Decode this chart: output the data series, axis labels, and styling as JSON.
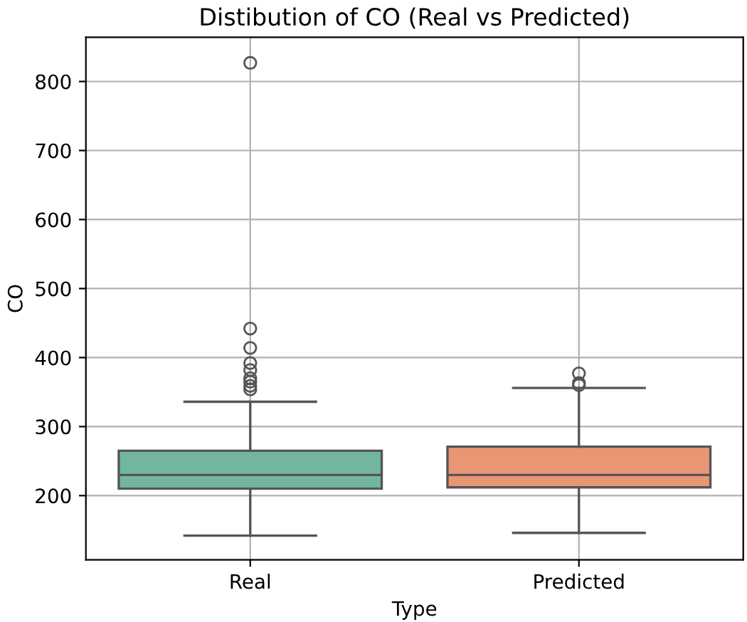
{
  "chart_data": {
    "type": "box",
    "title": "Distibution of CO (Real vs Predicted)",
    "xlabel": "Type",
    "ylabel": "CO",
    "categories": [
      "Real",
      "Predicted"
    ],
    "colors": [
      "#72b6a1",
      "#e99675"
    ],
    "boxes": [
      {
        "low": 142,
        "q1": 210,
        "median": 230,
        "q3": 265,
        "high": 336,
        "outliers": [
          827,
          442,
          414,
          392,
          382,
          370,
          365,
          359,
          354
        ]
      },
      {
        "low": 146,
        "q1": 212,
        "median": 230,
        "q3": 271,
        "high": 356,
        "outliers": [
          377,
          363,
          360
        ]
      }
    ],
    "ylim": [
      107,
      864
    ],
    "yticks": [
      200,
      300,
      400,
      500,
      600,
      700,
      800
    ],
    "grid": true
  }
}
